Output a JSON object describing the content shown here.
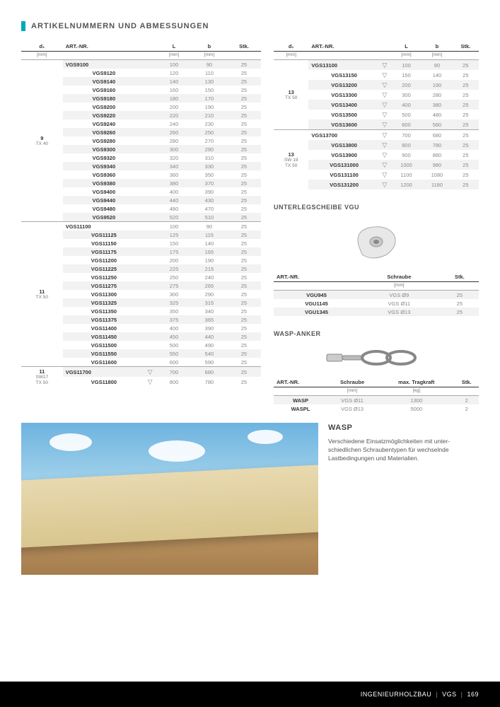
{
  "title": "ARTIKELNUMMERN UND ABMESSUNGEN",
  "headers": {
    "d1": "d₁",
    "art": "ART.-NR.",
    "L": "L",
    "b": "b",
    "stk": "Stk.",
    "mm": "[mm]",
    "schraube": "Schraube",
    "tragkraft": "max. Tragkraft",
    "kg": "[kg]"
  },
  "leftGroups": [
    {
      "label": "9",
      "sub": "TX 40",
      "hasIcon": false,
      "rows": [
        [
          "VGS9100",
          "100",
          "90",
          "25"
        ],
        [
          "VGS9120",
          "120",
          "110",
          "25"
        ],
        [
          "VGS9140",
          "140",
          "130",
          "25"
        ],
        [
          "VGS9160",
          "160",
          "150",
          "25"
        ],
        [
          "VGS9180",
          "180",
          "170",
          "25"
        ],
        [
          "VGS9200",
          "200",
          "190",
          "25"
        ],
        [
          "VGS9220",
          "220",
          "210",
          "25"
        ],
        [
          "VGS9240",
          "240",
          "230",
          "25"
        ],
        [
          "VGS9260",
          "260",
          "250",
          "25"
        ],
        [
          "VGS9280",
          "280",
          "270",
          "25"
        ],
        [
          "VGS9300",
          "300",
          "290",
          "25"
        ],
        [
          "VGS9320",
          "320",
          "310",
          "25"
        ],
        [
          "VGS9340",
          "340",
          "330",
          "25"
        ],
        [
          "VGS9360",
          "360",
          "350",
          "25"
        ],
        [
          "VGS9380",
          "380",
          "370",
          "25"
        ],
        [
          "VGS9400",
          "400",
          "390",
          "25"
        ],
        [
          "VGS9440",
          "440",
          "430",
          "25"
        ],
        [
          "VGS9480",
          "480",
          "470",
          "25"
        ],
        [
          "VGS9520",
          "520",
          "510",
          "25"
        ]
      ]
    },
    {
      "label": "11",
      "sub": "TX 50",
      "hasIcon": false,
      "rows": [
        [
          "VGS11100",
          "100",
          "90",
          "25"
        ],
        [
          "VGS11125",
          "125",
          "115",
          "25"
        ],
        [
          "VGS11150",
          "150",
          "140",
          "25"
        ],
        [
          "VGS11175",
          "175",
          "165",
          "25"
        ],
        [
          "VGS11200",
          "200",
          "190",
          "25"
        ],
        [
          "VGS11225",
          "225",
          "215",
          "25"
        ],
        [
          "VGS11250",
          "250",
          "240",
          "25"
        ],
        [
          "VGS11275",
          "275",
          "265",
          "25"
        ],
        [
          "VGS11300",
          "300",
          "290",
          "25"
        ],
        [
          "VGS11325",
          "325",
          "315",
          "25"
        ],
        [
          "VGS11350",
          "350",
          "340",
          "25"
        ],
        [
          "VGS11375",
          "375",
          "365",
          "25"
        ],
        [
          "VGS11400",
          "400",
          "390",
          "25"
        ],
        [
          "VGS11450",
          "450",
          "440",
          "25"
        ],
        [
          "VGS11500",
          "500",
          "490",
          "25"
        ],
        [
          "VGS11550",
          "550",
          "540",
          "25"
        ],
        [
          "VGS11600",
          "600",
          "590",
          "25"
        ]
      ]
    },
    {
      "label": "11",
      "sub": "SW17\nTX 50",
      "hasIcon": true,
      "rows": [
        [
          "VGS11700",
          "700",
          "680",
          "25"
        ],
        [
          "VGS11800",
          "800",
          "780",
          "25"
        ]
      ]
    }
  ],
  "rightGroups": [
    {
      "label": "13",
      "sub": "TX 50",
      "hasIcon": true,
      "rows": [
        [
          "VGS13100",
          "100",
          "90",
          "25"
        ],
        [
          "VGS13150",
          "150",
          "140",
          "25"
        ],
        [
          "VGS13200",
          "200",
          "190",
          "25"
        ],
        [
          "VGS13300",
          "300",
          "280",
          "25"
        ],
        [
          "VGS13400",
          "400",
          "380",
          "25"
        ],
        [
          "VGS13500",
          "500",
          "480",
          "25"
        ],
        [
          "VGS13600",
          "600",
          "580",
          "25"
        ]
      ]
    },
    {
      "label": "13",
      "sub": "SW 19\nTX 50",
      "hasIcon": true,
      "rows": [
        [
          "VGS13700",
          "700",
          "680",
          "25"
        ],
        [
          "VGS13800",
          "800",
          "780",
          "25"
        ],
        [
          "VGS13900",
          "900",
          "880",
          "25"
        ],
        [
          "VGS131000",
          "1000",
          "980",
          "25"
        ],
        [
          "VGS131100",
          "1100",
          "1080",
          "25"
        ],
        [
          "VGS131200",
          "1200",
          "1180",
          "25"
        ]
      ]
    }
  ],
  "washer": {
    "title": "UNTERLEGSCHEIBE VGU",
    "rows": [
      [
        "VGU945",
        "VGS Ø9",
        "25"
      ],
      [
        "VGU1145",
        "VGS Ø11",
        "25"
      ],
      [
        "VGU1345",
        "VGS Ø13",
        "25"
      ]
    ]
  },
  "anchor": {
    "title": "WASP-ANKER",
    "rows": [
      [
        "WASP",
        "VGS Ø11",
        "1300",
        "2"
      ],
      [
        "WASPL",
        "VGS Ø13",
        "5000",
        "2"
      ]
    ]
  },
  "wasp": {
    "heading": "WASP",
    "text": "Verschiedene Einsatzmöglichkeiten mit unter­schiedlichen Schraubentypen für wechselnde Lastbedingungen und Materialien."
  },
  "footer": {
    "a": "INGENIEURHOLZBAU",
    "b": "VGS",
    "c": "169"
  },
  "colors": {
    "accent": "#00a9b7",
    "alt_row": "#f2f2f2",
    "text_muted": "#888",
    "footer_bg": "#000000"
  }
}
